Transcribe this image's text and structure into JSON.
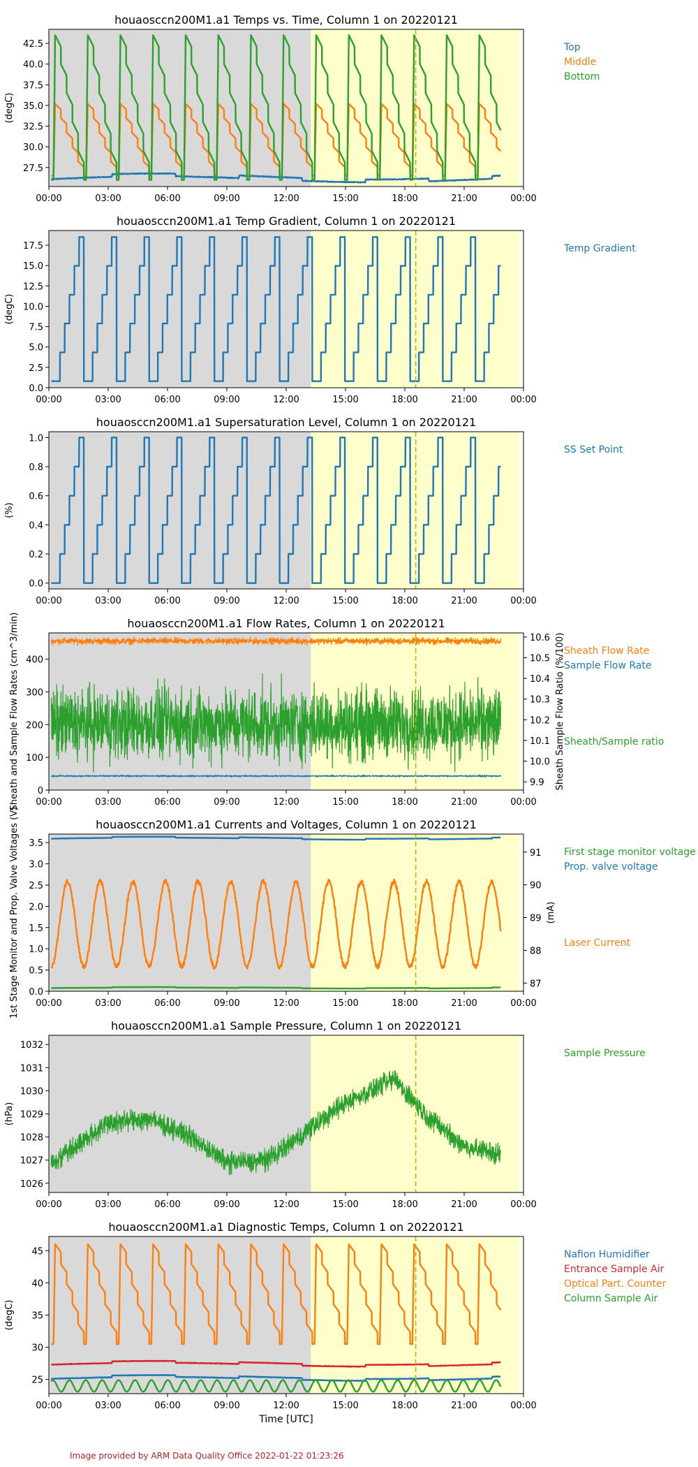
{
  "figure": {
    "x_label": "Time [UTC]",
    "x_ticks": [
      "00:00",
      "03:00",
      "06:00",
      "09:00",
      "12:00",
      "15:00",
      "18:00",
      "21:00",
      "00:00"
    ],
    "x_range_hours": [
      0,
      24
    ],
    "shading": {
      "gray_span_hours": [
        0,
        13.25
      ],
      "yellow_span_hours": [
        13.25,
        23.8
      ],
      "colors": {
        "gray": "#d9d9d9",
        "yellow": "#ffffcc"
      }
    },
    "marker_line": {
      "hour": 18.55,
      "color": "#b5b51a",
      "style": "dashed"
    },
    "credit": "Image provided by ARM Data Quality Office 2022-01-22 01:23:26"
  },
  "chart_data": [
    {
      "type": "line",
      "title": "houaosccn200M1.a1 Temps vs. Time, Column 1 on 20220121",
      "ylabel": "(degC)",
      "ylim": [
        25.2,
        44.2
      ],
      "y_ticks": [
        "27.5",
        "30.0",
        "32.5",
        "35.0",
        "37.5",
        "40.0",
        "42.5"
      ],
      "series": [
        {
          "name": "Top",
          "color": "#1f77b4",
          "pattern": "flat",
          "base": 26.2,
          "amp": 0.6
        },
        {
          "name": "Middle",
          "color": "#ff7f0e",
          "pattern": "sawtooth",
          "low": 26.5,
          "high": 35.2,
          "period_hours": 1.65
        },
        {
          "name": "Bottom",
          "color": "#2ca02c",
          "pattern": "sawtooth",
          "low": 26.0,
          "high": 43.5,
          "period_hours": 1.65
        }
      ]
    },
    {
      "type": "line",
      "title": "houaosccn200M1.a1 Temp Gradient, Column 1 on 20220121",
      "ylabel": "(degC)",
      "ylim": [
        0,
        19.3
      ],
      "y_ticks": [
        "0.0",
        "2.5",
        "5.0",
        "7.5",
        "10.0",
        "12.5",
        "15.0",
        "17.5"
      ],
      "series": [
        {
          "name": "Temp Gradient",
          "color": "#1f77b4",
          "pattern": "stairs",
          "low": 0.8,
          "high": 18.5,
          "period_hours": 1.65
        }
      ]
    },
    {
      "type": "line",
      "title": "houaosccn200M1.a1 Supersaturation Level, Column 1 on 20220121",
      "ylabel": "(%)",
      "ylim": [
        -0.04,
        1.04
      ],
      "y_ticks": [
        "0.0",
        "0.2",
        "0.4",
        "0.6",
        "0.8",
        "1.0"
      ],
      "series": [
        {
          "name": "SS Set Point",
          "color": "#1f77b4",
          "pattern": "stairs",
          "low": 0.0,
          "high": 1.0,
          "period_hours": 1.65
        }
      ]
    },
    {
      "type": "line",
      "title": "houaosccn200M1.a1 Flow Rates, Column 1 on 20220121",
      "ylabel": "Sheath and Sample Flow Rates (cm^3/min)",
      "ylim": [
        0,
        480
      ],
      "y_ticks": [
        "0",
        "100",
        "200",
        "300",
        "400"
      ],
      "y2label": "Sheath Sample Flow Ratio (%/100)",
      "y2lim": [
        9.86,
        10.62
      ],
      "y2_ticks": [
        "9.9",
        "10.0",
        "10.1",
        "10.2",
        "10.3",
        "10.4",
        "10.5",
        "10.6"
      ],
      "series": [
        {
          "name": "Sheath Flow Rate",
          "color": "#ff7f0e",
          "pattern": "noise",
          "base": 455,
          "amp": 8
        },
        {
          "name": "Sample Flow Rate",
          "color": "#1f77b4",
          "pattern": "noise",
          "base": 43,
          "amp": 2
        },
        {
          "name": "Sheath/Sample ratio",
          "color": "#2ca02c",
          "pattern": "noise",
          "axis": "right",
          "base": 10.18,
          "amp": 0.14
        }
      ]
    },
    {
      "type": "line",
      "title": "houaosccn200M1.a1 Currents and Voltages, Column 1 on 20220121",
      "ylabel": "1st Stage Monitor and Prop. Valve Voltages (V)",
      "ylim": [
        0,
        3.7
      ],
      "y_ticks": [
        "0.0",
        "0.5",
        "1.0",
        "1.5",
        "2.0",
        "2.5",
        "3.0",
        "3.5"
      ],
      "y2label": "(mA)",
      "y2lim": [
        86.75,
        91.55
      ],
      "y2_ticks": [
        "87",
        "88",
        "89",
        "90",
        "91"
      ],
      "series": [
        {
          "name": "First stage monitor voltage",
          "color": "#2ca02c",
          "pattern": "flat",
          "base": 0.08,
          "amp": 0.02
        },
        {
          "name": "Prop. valve voltage",
          "color": "#1f77b4",
          "pattern": "flat",
          "base": 3.6,
          "amp": 0.04
        },
        {
          "name": "Laser Current",
          "color": "#ff7f0e",
          "pattern": "cycle",
          "axis": "right",
          "low": 87.5,
          "high": 90.1,
          "period_hours": 1.65
        }
      ]
    },
    {
      "type": "line",
      "title": "houaosccn200M1.a1 Sample Pressure, Column 1 on 20220121",
      "ylabel": "(hPa)",
      "ylim": [
        1025.6,
        1032.4
      ],
      "y_ticks": [
        "1026",
        "1027",
        "1028",
        "1029",
        "1030",
        "1031",
        "1032"
      ],
      "series": [
        {
          "name": "Sample Pressure",
          "color": "#2ca02c",
          "pattern": "pressure",
          "knots_hours": [
            0,
            3,
            5,
            7,
            9,
            11,
            13,
            15,
            17.5,
            19,
            21,
            23
          ],
          "knots_values": [
            1026.8,
            1028.6,
            1028.8,
            1028.1,
            1026.9,
            1027.0,
            1028.2,
            1029.5,
            1030.5,
            1029.0,
            1027.6,
            1027.2
          ]
        }
      ]
    },
    {
      "type": "line",
      "title": "houaosccn200M1.a1 Diagnostic Temps, Column 1 on 20220121",
      "ylabel": "(degC)",
      "ylim": [
        22.8,
        47.2
      ],
      "y_ticks": [
        "25",
        "30",
        "35",
        "40",
        "45"
      ],
      "series": [
        {
          "name": "Nafion Humidifier",
          "color": "#1f77b4",
          "pattern": "flat",
          "base": 25.2,
          "amp": 0.5
        },
        {
          "name": "Entrance Sample Air",
          "color": "#d62728",
          "pattern": "flat",
          "base": 27.4,
          "amp": 0.5
        },
        {
          "name": "Optical Part. Counter",
          "color": "#ff7f0e",
          "pattern": "sawtooth",
          "low": 30.5,
          "high": 46.0,
          "period_hours": 1.65
        },
        {
          "name": "Column Sample Air",
          "color": "#2ca02c",
          "pattern": "wave",
          "base": 24.0,
          "amp": 0.9,
          "period_hours": 0.83
        }
      ]
    }
  ]
}
